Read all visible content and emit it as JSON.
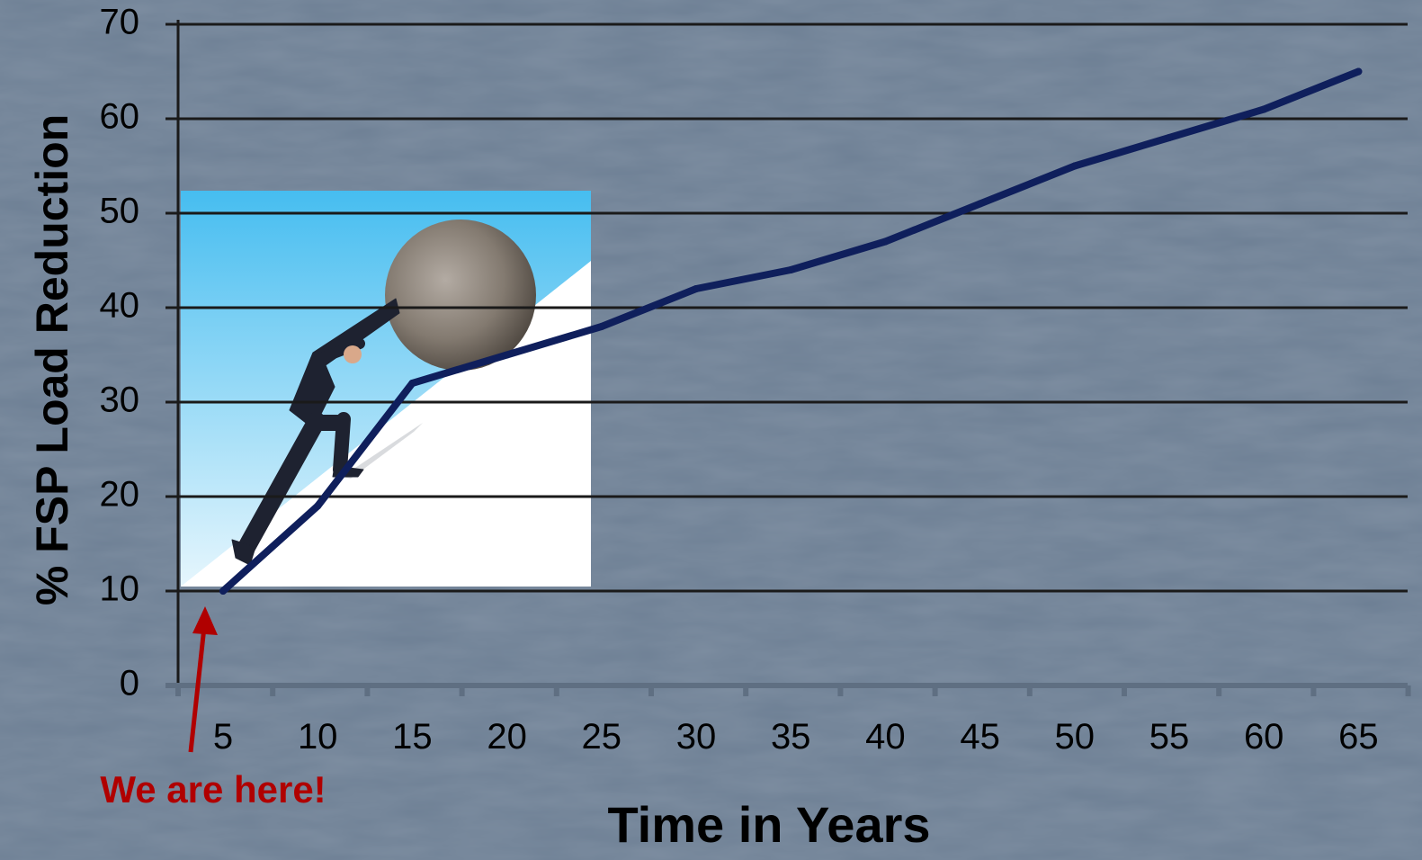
{
  "chart_data": {
    "type": "line",
    "xlabel": "Time in Years",
    "ylabel": "% FSP Load Reduction",
    "ylim": [
      0,
      70
    ],
    "yticks": [
      "0",
      "10",
      "20",
      "30",
      "40",
      "50",
      "60",
      "70"
    ],
    "categories": [
      "5",
      "10",
      "15",
      "20",
      "25",
      "30",
      "35",
      "40",
      "45",
      "50",
      "55",
      "60",
      "65"
    ],
    "series": [
      {
        "values": [
          10,
          19,
          32,
          35,
          38,
          42,
          44,
          47,
          51,
          55,
          58,
          61,
          65
        ]
      }
    ],
    "grid": true,
    "annotation": {
      "text": "We are here!",
      "points_to": "5"
    },
    "colors": {
      "line": "#0f1f5c",
      "grid": "#1a1a1a",
      "annotation": "#b00000",
      "background": "#6d7f94"
    },
    "illustration": "man-pushing-boulder-uphill"
  }
}
